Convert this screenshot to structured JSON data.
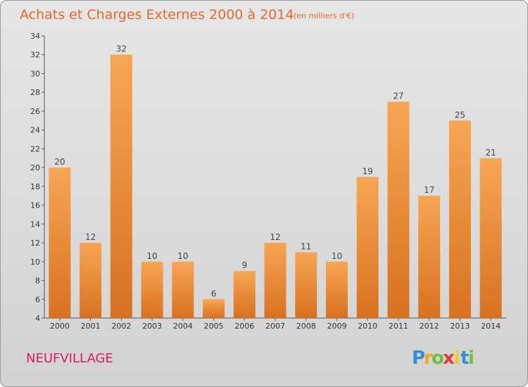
{
  "chart_data": {
    "type": "bar",
    "title": "Achats et Charges Externes 2000 à 2014",
    "subtitle": "(en milliers d'€)",
    "categories": [
      "2000",
      "2001",
      "2002",
      "2003",
      "2004",
      "2005",
      "2006",
      "2007",
      "2008",
      "2009",
      "2010",
      "2011",
      "2012",
      "2013",
      "2014"
    ],
    "values": [
      20,
      12,
      32,
      10,
      10,
      6,
      9,
      12,
      11,
      10,
      19,
      27,
      17,
      25,
      21
    ],
    "ylim": [
      4,
      34
    ],
    "yticks": [
      4,
      6,
      8,
      10,
      12,
      14,
      16,
      18,
      20,
      22,
      24,
      26,
      28,
      30,
      32,
      34
    ],
    "xlabel": "",
    "ylabel": "",
    "grid": false,
    "bar_color_light": "#f7a654",
    "bar_color_dark": "#d8711f"
  },
  "commune": "NEUFVILLAGE",
  "logo": {
    "letters": [
      "P",
      "r",
      "o",
      "x",
      "i",
      "t",
      "i"
    ],
    "colors": [
      "#2f8fd6",
      "#f5a623",
      "#6cbf3c",
      "#e53935",
      "#f5c518",
      "#2f8fd6",
      "#6cbf3c"
    ]
  }
}
